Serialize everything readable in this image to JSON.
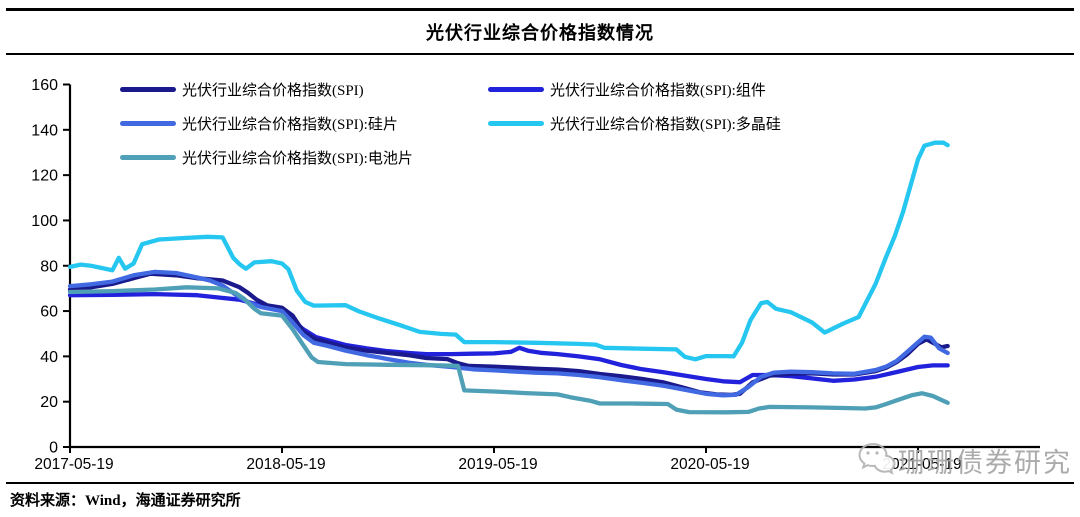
{
  "title": "光伏行业综合价格指数情况",
  "source_text": "资料来源：Wind，海通证券研究所",
  "watermark": {
    "text": "珊珊债券研究",
    "icon": "wechat-icon",
    "color": "#a4a4a4"
  },
  "chart_data": {
    "type": "line",
    "title": "光伏行业综合价格指数情况",
    "xlabel": "",
    "ylabel": "",
    "ylim": [
      0,
      160
    ],
    "y_ticks": [
      0,
      20,
      40,
      60,
      80,
      100,
      120,
      140,
      160
    ],
    "x_ticks": [
      {
        "pos": 0,
        "label": "2017-05-19"
      },
      {
        "pos": 1,
        "label": "2018-05-19"
      },
      {
        "pos": 2,
        "label": "2019-05-19"
      },
      {
        "pos": 3,
        "label": "2020-05-19"
      },
      {
        "pos": 4,
        "label": "2021-05-19"
      }
    ],
    "x_unit": "years since 2017-05-19",
    "grid": false,
    "legend_position": "top-left, two columns",
    "legend_order": [
      0,
      1,
      2,
      3,
      4
    ],
    "draw_order": [
      1,
      0,
      2,
      4,
      3
    ],
    "series": [
      {
        "name": "光伏行业综合价格指数(SPI)",
        "color": "#1A1A8C",
        "points": [
          [
            0,
            69.5
          ],
          [
            0.1,
            70.5
          ],
          [
            0.2,
            72
          ],
          [
            0.3,
            74.5
          ],
          [
            0.38,
            76.5
          ],
          [
            0.5,
            75.8
          ],
          [
            0.6,
            74.5
          ],
          [
            0.72,
            73.5
          ],
          [
            0.8,
            70.5
          ],
          [
            0.84,
            68
          ],
          [
            0.88,
            65
          ],
          [
            0.93,
            62.5
          ],
          [
            1.0,
            61.5
          ],
          [
            1.05,
            58
          ],
          [
            1.1,
            51
          ],
          [
            1.15,
            48
          ],
          [
            1.22,
            46
          ],
          [
            1.3,
            44
          ],
          [
            1.4,
            42.5
          ],
          [
            1.5,
            41.5
          ],
          [
            1.6,
            40.5
          ],
          [
            1.68,
            39.3
          ],
          [
            1.78,
            38.8
          ],
          [
            1.83,
            37
          ],
          [
            1.88,
            35.8
          ],
          [
            2.0,
            35.5
          ],
          [
            2.1,
            35
          ],
          [
            2.2,
            34.5
          ],
          [
            2.3,
            34.2
          ],
          [
            2.4,
            33.5
          ],
          [
            2.5,
            32.2
          ],
          [
            2.6,
            31.2
          ],
          [
            2.7,
            30
          ],
          [
            2.8,
            28.5
          ],
          [
            2.9,
            26
          ],
          [
            2.97,
            24.2
          ],
          [
            3.05,
            23.2
          ],
          [
            3.12,
            23
          ],
          [
            3.16,
            23.5
          ],
          [
            3.22,
            28.5
          ],
          [
            3.3,
            31.5
          ],
          [
            3.4,
            32.3
          ],
          [
            3.5,
            32.5
          ],
          [
            3.6,
            32
          ],
          [
            3.7,
            32
          ],
          [
            3.8,
            33.5
          ],
          [
            3.85,
            35
          ],
          [
            3.9,
            37.5
          ],
          [
            3.95,
            41
          ],
          [
            4.0,
            45.5
          ],
          [
            4.04,
            47.5
          ],
          [
            4.08,
            45.5
          ],
          [
            4.11,
            44
          ],
          [
            4.14,
            44.6
          ]
        ]
      },
      {
        "name": "光伏行业综合价格指数(SPI):组件",
        "color": "#2222DD",
        "points": [
          [
            0,
            67
          ],
          [
            0.2,
            67.2
          ],
          [
            0.4,
            67.5
          ],
          [
            0.6,
            67
          ],
          [
            0.7,
            66
          ],
          [
            0.8,
            65
          ],
          [
            0.9,
            62.5
          ],
          [
            1.0,
            60
          ],
          [
            1.05,
            56
          ],
          [
            1.1,
            52
          ],
          [
            1.16,
            48.5
          ],
          [
            1.22,
            47
          ],
          [
            1.3,
            45
          ],
          [
            1.4,
            43.5
          ],
          [
            1.5,
            42.3
          ],
          [
            1.6,
            41.5
          ],
          [
            1.68,
            41
          ],
          [
            1.8,
            41
          ],
          [
            1.9,
            41.2
          ],
          [
            2.0,
            41.3
          ],
          [
            2.08,
            42
          ],
          [
            2.12,
            43.8
          ],
          [
            2.16,
            42.5
          ],
          [
            2.22,
            41.6
          ],
          [
            2.3,
            41
          ],
          [
            2.4,
            40
          ],
          [
            2.5,
            38.7
          ],
          [
            2.6,
            36.2
          ],
          [
            2.7,
            34.3
          ],
          [
            2.8,
            33
          ],
          [
            2.9,
            31.5
          ],
          [
            3.0,
            30
          ],
          [
            3.08,
            29
          ],
          [
            3.16,
            28.6
          ],
          [
            3.22,
            31.8
          ],
          [
            3.3,
            31.8
          ],
          [
            3.4,
            31.3
          ],
          [
            3.5,
            30.3
          ],
          [
            3.6,
            29.2
          ],
          [
            3.7,
            29.8
          ],
          [
            3.8,
            31
          ],
          [
            3.9,
            33.1
          ],
          [
            4.0,
            35.3
          ],
          [
            4.07,
            36
          ],
          [
            4.14,
            36
          ]
        ]
      },
      {
        "name": "光伏行业综合价格指数(SPI):硅片",
        "color": "#4169E1",
        "points": [
          [
            0,
            71
          ],
          [
            0.1,
            71.8
          ],
          [
            0.2,
            73
          ],
          [
            0.3,
            75.8
          ],
          [
            0.4,
            77.3
          ],
          [
            0.5,
            76.8
          ],
          [
            0.6,
            74.8
          ],
          [
            0.66,
            73.5
          ],
          [
            0.72,
            71.3
          ],
          [
            0.8,
            66
          ],
          [
            0.85,
            63.5
          ],
          [
            0.9,
            61.8
          ],
          [
            1.0,
            60
          ],
          [
            1.05,
            55
          ],
          [
            1.1,
            49.5
          ],
          [
            1.15,
            46
          ],
          [
            1.22,
            44.5
          ],
          [
            1.3,
            42.5
          ],
          [
            1.4,
            40.5
          ],
          [
            1.5,
            38.8
          ],
          [
            1.6,
            37.2
          ],
          [
            1.68,
            36.3
          ],
          [
            1.8,
            35.3
          ],
          [
            1.9,
            34.3
          ],
          [
            2.0,
            33.8
          ],
          [
            2.1,
            33.3
          ],
          [
            2.2,
            32.8
          ],
          [
            2.3,
            32.5
          ],
          [
            2.4,
            31.8
          ],
          [
            2.5,
            30.8
          ],
          [
            2.6,
            29.5
          ],
          [
            2.7,
            28.3
          ],
          [
            2.8,
            27
          ],
          [
            2.9,
            25.3
          ],
          [
            3.0,
            23.5
          ],
          [
            3.08,
            22.8
          ],
          [
            3.14,
            23
          ],
          [
            3.2,
            26.5
          ],
          [
            3.26,
            31
          ],
          [
            3.32,
            32.8
          ],
          [
            3.4,
            33.3
          ],
          [
            3.5,
            33
          ],
          [
            3.6,
            32.5
          ],
          [
            3.7,
            32.3
          ],
          [
            3.8,
            34
          ],
          [
            3.85,
            35.5
          ],
          [
            3.9,
            38
          ],
          [
            3.95,
            42
          ],
          [
            4.0,
            46.2
          ],
          [
            4.03,
            48.7
          ],
          [
            4.06,
            48.3
          ],
          [
            4.1,
            43.5
          ],
          [
            4.14,
            41.5
          ]
        ]
      },
      {
        "name": "光伏行业综合价格指数(SPI):多晶硅",
        "color": "#25C6F0",
        "points": [
          [
            0,
            79.5
          ],
          [
            0.05,
            80.5
          ],
          [
            0.1,
            80
          ],
          [
            0.15,
            79
          ],
          [
            0.2,
            78
          ],
          [
            0.23,
            83.5
          ],
          [
            0.26,
            78.7
          ],
          [
            0.3,
            81
          ],
          [
            0.34,
            89.5
          ],
          [
            0.42,
            91.6
          ],
          [
            0.55,
            92.3
          ],
          [
            0.65,
            92.8
          ],
          [
            0.72,
            92.5
          ],
          [
            0.77,
            83.5
          ],
          [
            0.8,
            80.7
          ],
          [
            0.83,
            78.7
          ],
          [
            0.87,
            81.5
          ],
          [
            0.95,
            82
          ],
          [
            1.0,
            81
          ],
          [
            1.03,
            78.5
          ],
          [
            1.07,
            69
          ],
          [
            1.11,
            64
          ],
          [
            1.15,
            62.4
          ],
          [
            1.3,
            62.6
          ],
          [
            1.36,
            60
          ],
          [
            1.45,
            57
          ],
          [
            1.55,
            54
          ],
          [
            1.65,
            50.8
          ],
          [
            1.75,
            49.9
          ],
          [
            1.82,
            49.6
          ],
          [
            1.86,
            46.3
          ],
          [
            2.0,
            46.3
          ],
          [
            2.2,
            46
          ],
          [
            2.4,
            45.5
          ],
          [
            2.48,
            45.2
          ],
          [
            2.52,
            43.8
          ],
          [
            2.7,
            43.4
          ],
          [
            2.86,
            43.1
          ],
          [
            2.9,
            39.8
          ],
          [
            2.95,
            38.7
          ],
          [
            3.0,
            40.1
          ],
          [
            3.1,
            40.1
          ],
          [
            3.13,
            40
          ],
          [
            3.17,
            46
          ],
          [
            3.21,
            56
          ],
          [
            3.26,
            63.5
          ],
          [
            3.29,
            64
          ],
          [
            3.33,
            61
          ],
          [
            3.4,
            59.5
          ],
          [
            3.5,
            55
          ],
          [
            3.56,
            50.5
          ],
          [
            3.65,
            54.6
          ],
          [
            3.72,
            57.4
          ],
          [
            3.8,
            72
          ],
          [
            3.85,
            84
          ],
          [
            3.89,
            93
          ],
          [
            3.93,
            104
          ],
          [
            3.97,
            117
          ],
          [
            4.0,
            127
          ],
          [
            4.03,
            133
          ],
          [
            4.08,
            134.3
          ],
          [
            4.12,
            134.3
          ],
          [
            4.14,
            133.2
          ]
        ]
      },
      {
        "name": "光伏行业综合价格指数(SPI):电池片",
        "color": "#4FA0B7",
        "points": [
          [
            0,
            68.4
          ],
          [
            0.2,
            68.8
          ],
          [
            0.4,
            69.5
          ],
          [
            0.55,
            70.5
          ],
          [
            0.7,
            70
          ],
          [
            0.78,
            68
          ],
          [
            0.82,
            65.5
          ],
          [
            0.87,
            61
          ],
          [
            0.9,
            59
          ],
          [
            1.0,
            58
          ],
          [
            1.05,
            52
          ],
          [
            1.1,
            45
          ],
          [
            1.14,
            39.5
          ],
          [
            1.17,
            37.5
          ],
          [
            1.3,
            36.6
          ],
          [
            1.5,
            36.3
          ],
          [
            1.68,
            36.1
          ],
          [
            1.8,
            35.9
          ],
          [
            1.83,
            35.8
          ],
          [
            1.86,
            25
          ],
          [
            2.0,
            24.5
          ],
          [
            2.15,
            23.8
          ],
          [
            2.3,
            23.2
          ],
          [
            2.36,
            22
          ],
          [
            2.45,
            20.5
          ],
          [
            2.5,
            19.2
          ],
          [
            2.65,
            19.2
          ],
          [
            2.82,
            19
          ],
          [
            2.86,
            16.5
          ],
          [
            2.92,
            15.4
          ],
          [
            3.1,
            15.3
          ],
          [
            3.2,
            15.5
          ],
          [
            3.25,
            17
          ],
          [
            3.3,
            17.7
          ],
          [
            3.5,
            17.5
          ],
          [
            3.65,
            17.2
          ],
          [
            3.75,
            17
          ],
          [
            3.8,
            17.5
          ],
          [
            3.85,
            19
          ],
          [
            3.9,
            20.6
          ],
          [
            3.97,
            22.8
          ],
          [
            4.02,
            23.7
          ],
          [
            4.07,
            22.5
          ],
          [
            4.14,
            19.5
          ]
        ]
      }
    ]
  }
}
